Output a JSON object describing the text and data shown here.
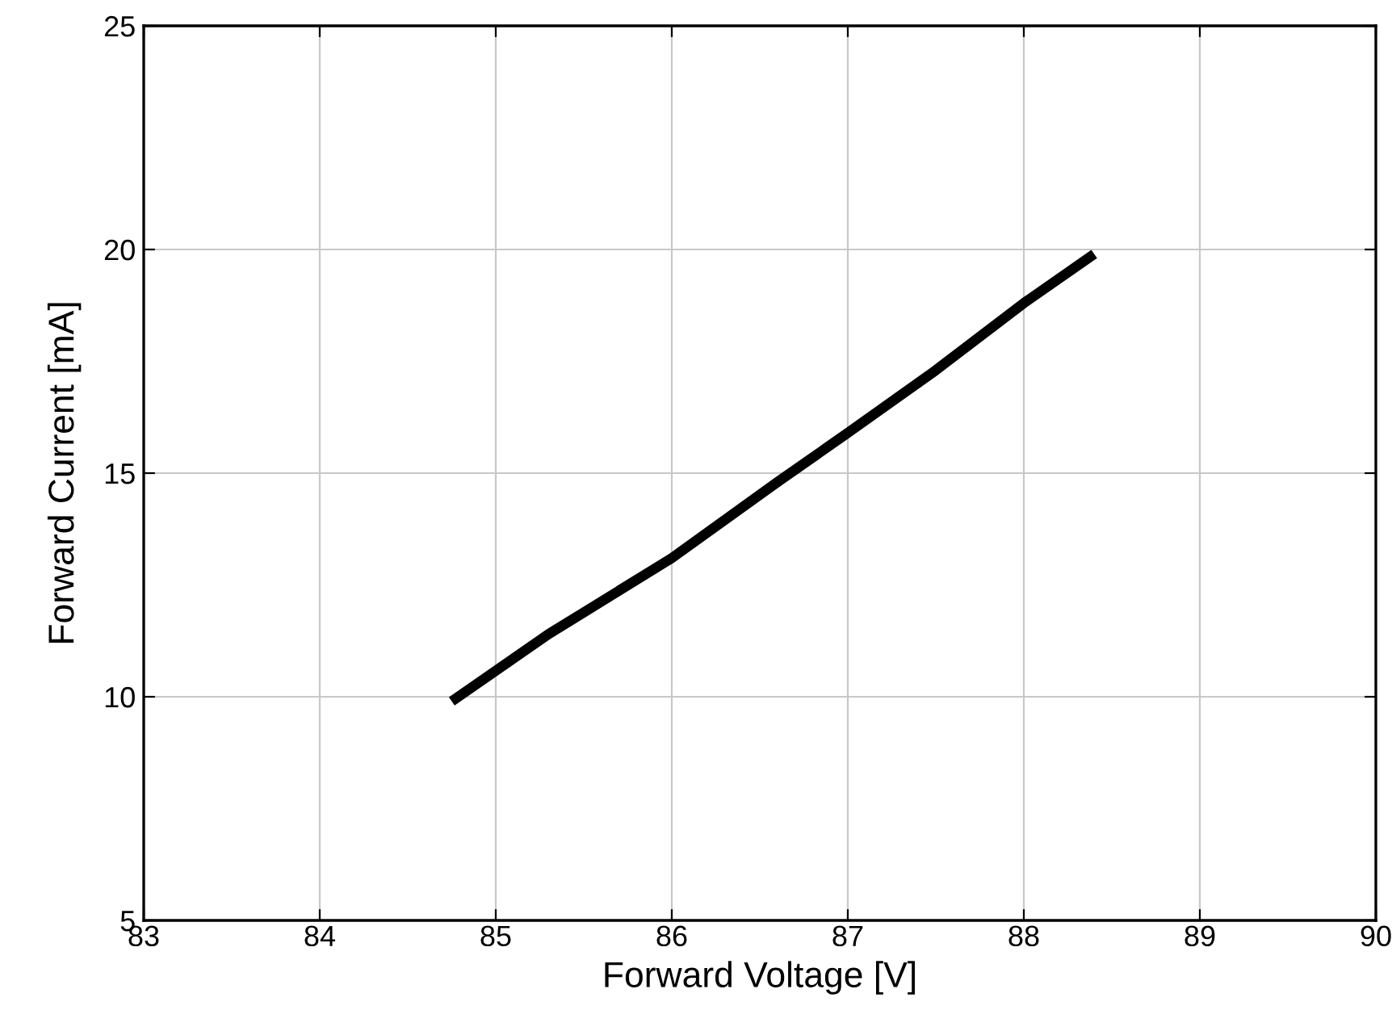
{
  "chart_data": {
    "type": "line",
    "xlabel": "Forward Voltage [V]",
    "ylabel": "Forward Current [mA]",
    "x": [
      84.75,
      85.3,
      86.0,
      86.6,
      87.0,
      87.5,
      88.0,
      88.4
    ],
    "series": [
      {
        "color": "#000000",
        "values": [
          9.9,
          11.4,
          13.1,
          14.8,
          15.9,
          17.3,
          18.8,
          19.9
        ]
      }
    ],
    "xlim": [
      83,
      90
    ],
    "xticks": [
      83,
      84,
      85,
      86,
      87,
      88,
      89,
      90
    ],
    "ylim": [
      5,
      25
    ],
    "yticks": [
      5,
      10,
      15,
      20,
      25
    ],
    "grid": true,
    "marker": "none",
    "line_style": "solid",
    "legend": false
  }
}
